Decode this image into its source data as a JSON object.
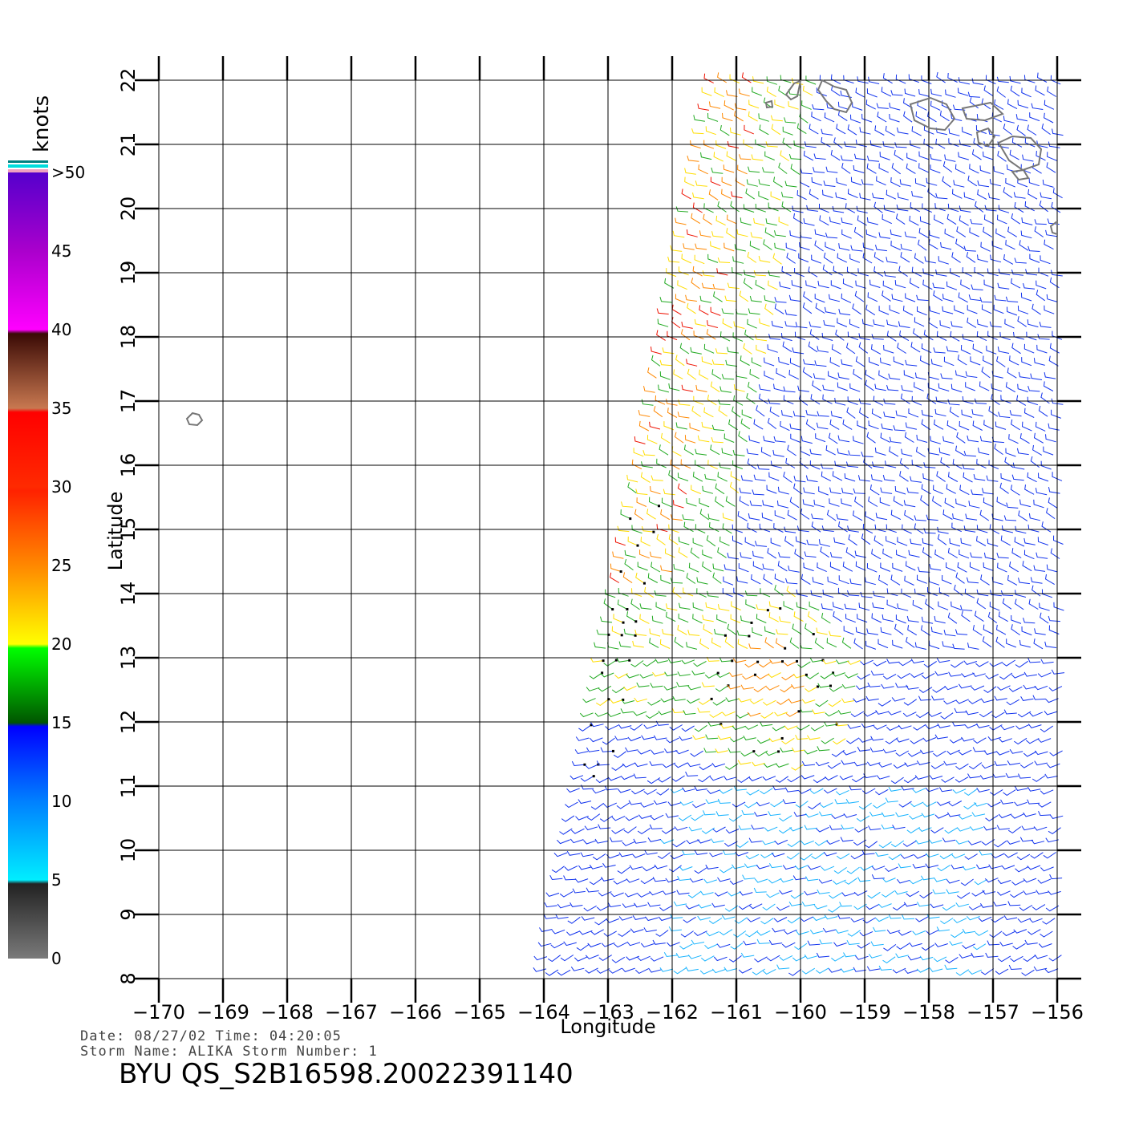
{
  "map": {
    "xlabel": "Longitude",
    "ylabel": "Latitude",
    "x_ticks": [
      "−170",
      "−169",
      "−168",
      "−167",
      "−166",
      "−165",
      "−164",
      "−163",
      "−162",
      "−161",
      "−160",
      "−159",
      "−158",
      "−157",
      "−156"
    ],
    "y_ticks": [
      "8",
      "9",
      "10",
      "11",
      "12",
      "13",
      "14",
      "15",
      "16",
      "17",
      "18",
      "19",
      "20",
      "21",
      "22"
    ],
    "lon_range": [
      -170,
      -156
    ],
    "lat_range": [
      8,
      22
    ],
    "grid": true
  },
  "colorbar": {
    "unit": "knots",
    "labels": [
      "0",
      "5",
      "10",
      "15",
      "20",
      "25",
      "30",
      "35",
      "40",
      "45",
      ">50"
    ],
    "colors": [
      "#7a7a7a",
      "#00eeff",
      "#0000ff",
      "#00ff00",
      "#ffff00",
      "#ff4400",
      "#ff0000",
      "#5a1a0a",
      "#ff00ff",
      "#5500cc"
    ]
  },
  "info": {
    "date_line": "Date:  08/27/02   Time:  04:20:05",
    "storm_line": "Storm  Name:  ALIKA    Storm  Number:  1",
    "product": "BYU  QS_S2B16598.20022391140"
  }
}
